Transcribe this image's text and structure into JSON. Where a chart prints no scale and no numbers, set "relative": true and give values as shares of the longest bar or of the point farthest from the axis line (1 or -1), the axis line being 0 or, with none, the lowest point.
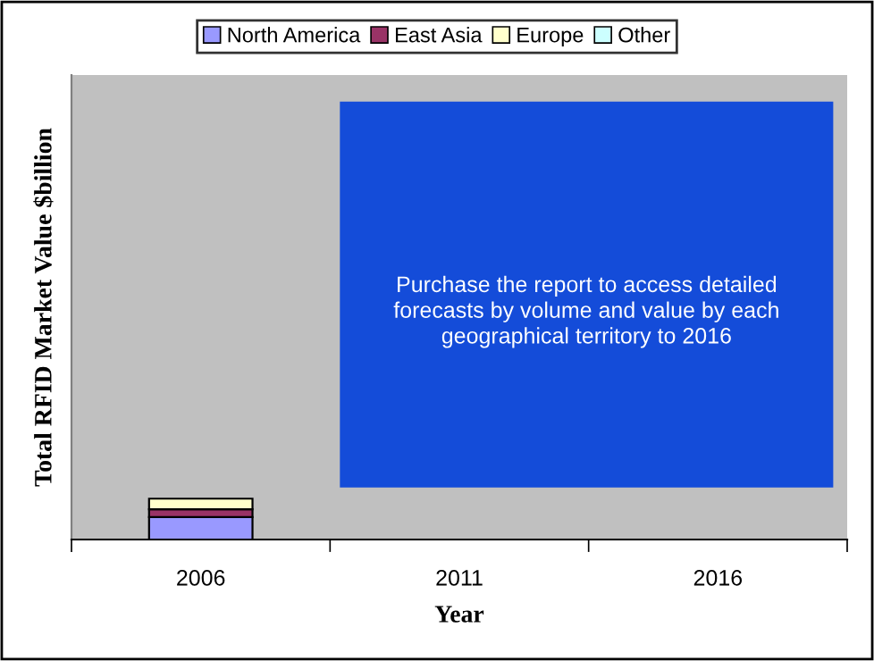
{
  "chart_data": {
    "type": "bar",
    "stacked": true,
    "relative": true,
    "xlabel": "Year",
    "ylabel": "Total RFID Market Value $billion",
    "categories": [
      "2006",
      "2011",
      "2016"
    ],
    "series": [
      {
        "name": "North America",
        "color": "#9999ff",
        "values": [
          0.55,
          null,
          null
        ]
      },
      {
        "name": "East Asia",
        "color": "#993366",
        "values": [
          0.19,
          null,
          null
        ]
      },
      {
        "name": "Europe",
        "color": "#ffffcc",
        "values": [
          0.26,
          null,
          null
        ]
      },
      {
        "name": "Other",
        "color": "#ccffff",
        "values": [
          null,
          null,
          null
        ]
      }
    ],
    "annotations": [
      "Purchase the report to access detailed\nforecasts by volume and value by each\ngeographical territory to 2016"
    ],
    "legend": "top",
    "grid": false
  }
}
